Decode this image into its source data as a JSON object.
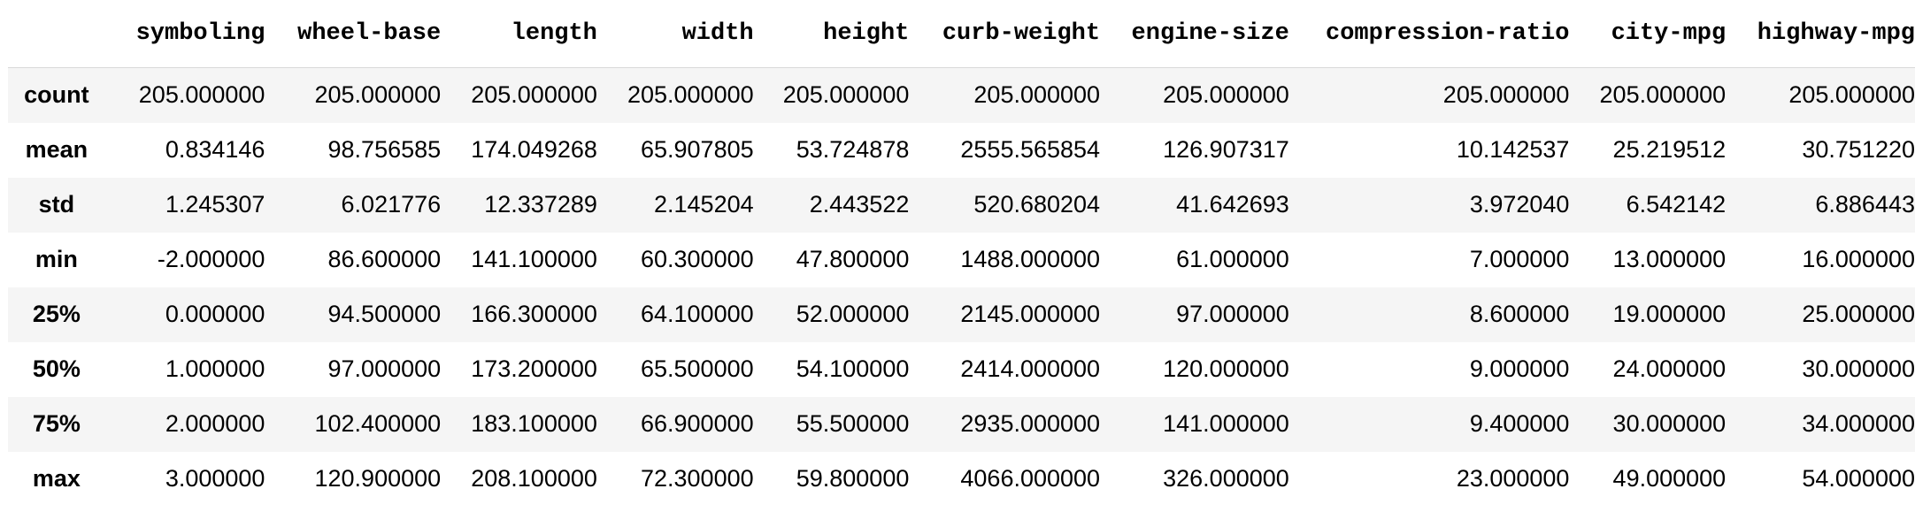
{
  "table": {
    "columns": [
      "symboling",
      "wheel-base",
      "length",
      "width",
      "height",
      "curb-weight",
      "engine-size",
      "compression-ratio",
      "city-mpg",
      "highway-mpg"
    ],
    "rows": [
      {
        "label": "count",
        "values": [
          "205.000000",
          "205.000000",
          "205.000000",
          "205.000000",
          "205.000000",
          "205.000000",
          "205.000000",
          "205.000000",
          "205.000000",
          "205.000000"
        ]
      },
      {
        "label": "mean",
        "values": [
          "0.834146",
          "98.756585",
          "174.049268",
          "65.907805",
          "53.724878",
          "2555.565854",
          "126.907317",
          "10.142537",
          "25.219512",
          "30.751220"
        ]
      },
      {
        "label": "std",
        "values": [
          "1.245307",
          "6.021776",
          "12.337289",
          "2.145204",
          "2.443522",
          "520.680204",
          "41.642693",
          "3.972040",
          "6.542142",
          "6.886443"
        ]
      },
      {
        "label": "min",
        "values": [
          "-2.000000",
          "86.600000",
          "141.100000",
          "60.300000",
          "47.800000",
          "1488.000000",
          "61.000000",
          "7.000000",
          "13.000000",
          "16.000000"
        ]
      },
      {
        "label": "25%",
        "values": [
          "0.000000",
          "94.500000",
          "166.300000",
          "64.100000",
          "52.000000",
          "2145.000000",
          "97.000000",
          "8.600000",
          "19.000000",
          "25.000000"
        ]
      },
      {
        "label": "50%",
        "values": [
          "1.000000",
          "97.000000",
          "173.200000",
          "65.500000",
          "54.100000",
          "2414.000000",
          "120.000000",
          "9.000000",
          "24.000000",
          "30.000000"
        ]
      },
      {
        "label": "75%",
        "values": [
          "2.000000",
          "102.400000",
          "183.100000",
          "66.900000",
          "55.500000",
          "2935.000000",
          "141.000000",
          "9.400000",
          "30.000000",
          "34.000000"
        ]
      },
      {
        "label": "max",
        "values": [
          "3.000000",
          "120.900000",
          "208.100000",
          "72.300000",
          "59.800000",
          "4066.000000",
          "326.000000",
          "23.000000",
          "49.000000",
          "54.000000"
        ]
      }
    ]
  }
}
